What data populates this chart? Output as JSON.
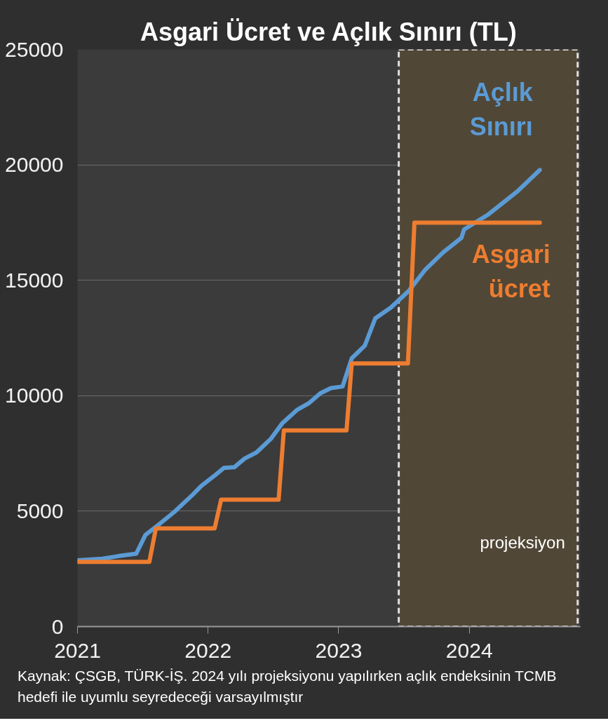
{
  "chart_data": {
    "type": "line",
    "title": "Asgari Ücret ve Açlık Sınırı (TL)",
    "xlim": [
      2021,
      2024.85
    ],
    "ylim": [
      0,
      25000
    ],
    "xticks": [
      2021,
      2022,
      2023,
      2024
    ],
    "yticks": [
      0,
      5000,
      10000,
      15000,
      20000,
      25000
    ],
    "grid": "y",
    "line_style": "solid",
    "marker": "none",
    "series": [
      {
        "name": "Açlık Sınırı",
        "color": "#5b9bd5",
        "x": [
          2021.0,
          2021.19,
          2021.31,
          2021.45,
          2021.52,
          2021.62,
          2021.74,
          2021.88,
          2021.95,
          2022.05,
          2022.12,
          2022.2,
          2022.28,
          2022.37,
          2022.48,
          2022.57,
          2022.68,
          2022.77,
          2022.86,
          2022.94,
          2023.03,
          2023.1,
          2023.2,
          2023.28,
          2023.4,
          2023.54,
          2023.66,
          2023.8,
          2023.94,
          2023.96,
          2024.14,
          2024.37,
          2024.54
        ],
        "values": [
          2870,
          2940,
          3050,
          3160,
          3970,
          4410,
          4960,
          5700,
          6100,
          6540,
          6870,
          6900,
          7280,
          7540,
          8130,
          8820,
          9380,
          9670,
          10110,
          10330,
          10400,
          11620,
          12170,
          13350,
          13820,
          14560,
          15440,
          16210,
          16840,
          17200,
          17830,
          18860,
          19780
        ]
      },
      {
        "name": "Asgari ücret",
        "color": "#ed7d31",
        "x": [
          2021.0,
          2021.55,
          2021.6,
          2022.05,
          2022.1,
          2022.54,
          2022.58,
          2023.06,
          2023.1,
          2023.53,
          2023.58,
          2024.54
        ],
        "values": [
          2800,
          2800,
          4250,
          4250,
          5500,
          5500,
          8500,
          8500,
          11400,
          11400,
          17500,
          17500
        ]
      }
    ],
    "bands": [
      {
        "axis": "x",
        "from": 2023.46,
        "to": 2024.83,
        "label": "projeksiyon",
        "color": "#514736"
      }
    ],
    "annotations": [
      "Kaynak: ÇSGB, TÜRK-İŞ. 2024 yılı projeksiyonu yapılırken açlık endeksinin TCMB hedefi ile uyumlu seyredeceği varsayılmıştır"
    ]
  }
}
